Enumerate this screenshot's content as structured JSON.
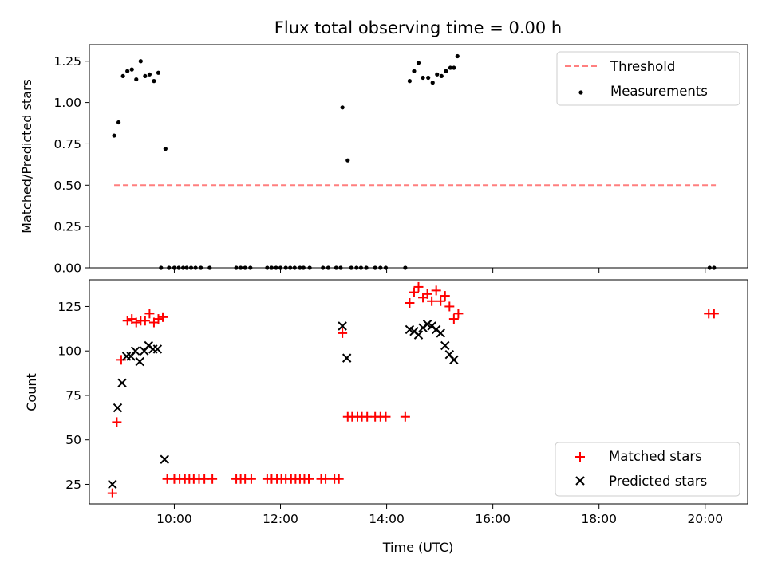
{
  "chart_data": [
    {
      "type": "scatter",
      "title": "Flux total observing time = 0.00 h",
      "xlabel": "",
      "ylabel": "Matched/Predicted stars",
      "xlim": [
        "08:24",
        "20:48"
      ],
      "ylim": [
        0,
        1.35
      ],
      "grid": false,
      "legend_position": "top-right",
      "yticks": [
        0.0,
        0.25,
        0.5,
        0.75,
        1.0,
        1.25
      ],
      "ytick_labels": [
        "0.00",
        "0.25",
        "0.50",
        "0.75",
        "1.00",
        "1.25"
      ],
      "series": [
        {
          "name": "Threshold",
          "kind": "line",
          "style": "dashed",
          "color": "#ff7f7f",
          "x": [
            "08:52",
            "20:12"
          ],
          "y": [
            0.5,
            0.5
          ]
        },
        {
          "name": "Measurements",
          "kind": "scatter",
          "color": "#000000",
          "points": [
            [
              "08:52",
              0.8
            ],
            [
              "08:57",
              0.88
            ],
            [
              "09:02",
              1.16
            ],
            [
              "09:07",
              1.19
            ],
            [
              "09:12",
              1.2
            ],
            [
              "09:17",
              1.14
            ],
            [
              "09:22",
              1.25
            ],
            [
              "09:27",
              1.16
            ],
            [
              "09:32",
              1.17
            ],
            [
              "09:37",
              1.13
            ],
            [
              "09:42",
              1.18
            ],
            [
              "09:50",
              0.72
            ],
            [
              "09:45",
              0
            ],
            [
              "09:54",
              0
            ],
            [
              "10:00",
              0
            ],
            [
              "10:05",
              0
            ],
            [
              "10:10",
              0
            ],
            [
              "10:14",
              0
            ],
            [
              "10:19",
              0
            ],
            [
              "10:24",
              0
            ],
            [
              "10:30",
              0
            ],
            [
              "10:40",
              0
            ],
            [
              "11:10",
              0
            ],
            [
              "11:15",
              0
            ],
            [
              "11:20",
              0
            ],
            [
              "11:26",
              0
            ],
            [
              "11:45",
              0
            ],
            [
              "11:50",
              0
            ],
            [
              "11:55",
              0
            ],
            [
              "12:00",
              0
            ],
            [
              "12:06",
              0
            ],
            [
              "12:11",
              0
            ],
            [
              "12:16",
              0
            ],
            [
              "12:22",
              0
            ],
            [
              "12:26",
              0
            ],
            [
              "12:33",
              0
            ],
            [
              "12:48",
              0
            ],
            [
              "12:54",
              0
            ],
            [
              "13:03",
              0
            ],
            [
              "13:08",
              0
            ],
            [
              "13:10",
              0.97
            ],
            [
              "13:16",
              0.65
            ],
            [
              "13:20",
              0
            ],
            [
              "13:26",
              0
            ],
            [
              "13:31",
              0
            ],
            [
              "13:37",
              0
            ],
            [
              "13:47",
              0
            ],
            [
              "13:53",
              0
            ],
            [
              "13:59",
              0
            ],
            [
              "14:21",
              0
            ],
            [
              "14:26",
              1.13
            ],
            [
              "14:31",
              1.19
            ],
            [
              "14:36",
              1.24
            ],
            [
              "14:41",
              1.15
            ],
            [
              "14:47",
              1.15
            ],
            [
              "14:52",
              1.12
            ],
            [
              "14:57",
              1.17
            ],
            [
              "15:02",
              1.16
            ],
            [
              "15:07",
              1.19
            ],
            [
              "15:12",
              1.21
            ],
            [
              "15:16",
              1.21
            ],
            [
              "15:20",
              1.28
            ],
            [
              "20:05",
              0
            ],
            [
              "20:10",
              0
            ]
          ]
        }
      ]
    },
    {
      "type": "scatter",
      "title": "",
      "xlabel": "Time (UTC)",
      "ylabel": "Count",
      "xlim": [
        "08:24",
        "20:48"
      ],
      "ylim": [
        14,
        140
      ],
      "grid": false,
      "legend_position": "bottom-right",
      "xticks": [
        "10:00",
        "12:00",
        "14:00",
        "16:00",
        "18:00",
        "20:00"
      ],
      "yticks": [
        25,
        50,
        75,
        100,
        125
      ],
      "ytick_labels": [
        "25",
        "50",
        "75",
        "100",
        "125"
      ],
      "series": [
        {
          "name": "Matched stars",
          "kind": "scatter",
          "marker": "plus",
          "color": "#ff0000",
          "points": [
            [
              "08:50",
              20
            ],
            [
              "08:55",
              60
            ],
            [
              "09:00",
              95
            ],
            [
              "09:07",
              117
            ],
            [
              "09:12",
              118
            ],
            [
              "09:17",
              116
            ],
            [
              "09:22",
              117
            ],
            [
              "09:27",
              117
            ],
            [
              "09:32",
              121
            ],
            [
              "09:37",
              116
            ],
            [
              "09:42",
              118
            ],
            [
              "09:47",
              119
            ],
            [
              "09:52",
              28
            ],
            [
              "10:00",
              28
            ],
            [
              "10:06",
              28
            ],
            [
              "10:12",
              28
            ],
            [
              "10:17",
              28
            ],
            [
              "10:22",
              28
            ],
            [
              "10:28",
              28
            ],
            [
              "10:34",
              28
            ],
            [
              "10:43",
              28
            ],
            [
              "11:10",
              28
            ],
            [
              "11:15",
              28
            ],
            [
              "11:20",
              28
            ],
            [
              "11:27",
              28
            ],
            [
              "11:45",
              28
            ],
            [
              "11:50",
              28
            ],
            [
              "11:56",
              28
            ],
            [
              "12:01",
              28
            ],
            [
              "12:06",
              28
            ],
            [
              "12:12",
              28
            ],
            [
              "12:17",
              28
            ],
            [
              "12:22",
              28
            ],
            [
              "12:27",
              28
            ],
            [
              "12:32",
              28
            ],
            [
              "12:46",
              28
            ],
            [
              "12:51",
              28
            ],
            [
              "13:01",
              28
            ],
            [
              "13:06",
              28
            ],
            [
              "13:10",
              110
            ],
            [
              "13:16",
              63
            ],
            [
              "13:21",
              63
            ],
            [
              "13:27",
              63
            ],
            [
              "13:32",
              63
            ],
            [
              "13:38",
              63
            ],
            [
              "13:47",
              63
            ],
            [
              "13:53",
              63
            ],
            [
              "13:59",
              63
            ],
            [
              "14:21",
              63
            ],
            [
              "14:26",
              127
            ],
            [
              "14:31",
              133
            ],
            [
              "14:36",
              136
            ],
            [
              "14:41",
              130
            ],
            [
              "14:46",
              132
            ],
            [
              "14:51",
              128
            ],
            [
              "14:56",
              134
            ],
            [
              "15:01",
              128
            ],
            [
              "15:06",
              131
            ],
            [
              "15:11",
              125
            ],
            [
              "15:16",
              118
            ],
            [
              "15:21",
              121
            ],
            [
              "20:04",
              121
            ],
            [
              "20:10",
              121
            ]
          ]
        },
        {
          "name": "Predicted stars",
          "kind": "scatter",
          "marker": "x",
          "color": "#000000",
          "points": [
            [
              "08:50",
              25
            ],
            [
              "08:56",
              68
            ],
            [
              "09:01",
              82
            ],
            [
              "09:06",
              97
            ],
            [
              "09:11",
              97
            ],
            [
              "09:16",
              100
            ],
            [
              "09:21",
              94
            ],
            [
              "09:26",
              100
            ],
            [
              "09:31",
              103
            ],
            [
              "09:36",
              101
            ],
            [
              "09:41",
              101
            ],
            [
              "09:49",
              39
            ],
            [
              "13:10",
              114
            ],
            [
              "13:15",
              96
            ],
            [
              "14:26",
              112
            ],
            [
              "14:31",
              111
            ],
            [
              "14:36",
              109
            ],
            [
              "14:41",
              113
            ],
            [
              "14:46",
              115
            ],
            [
              "14:51",
              114
            ],
            [
              "14:56",
              112
            ],
            [
              "15:01",
              110
            ],
            [
              "15:06",
              103
            ],
            [
              "15:11",
              98
            ],
            [
              "15:16",
              95
            ]
          ]
        }
      ]
    }
  ]
}
